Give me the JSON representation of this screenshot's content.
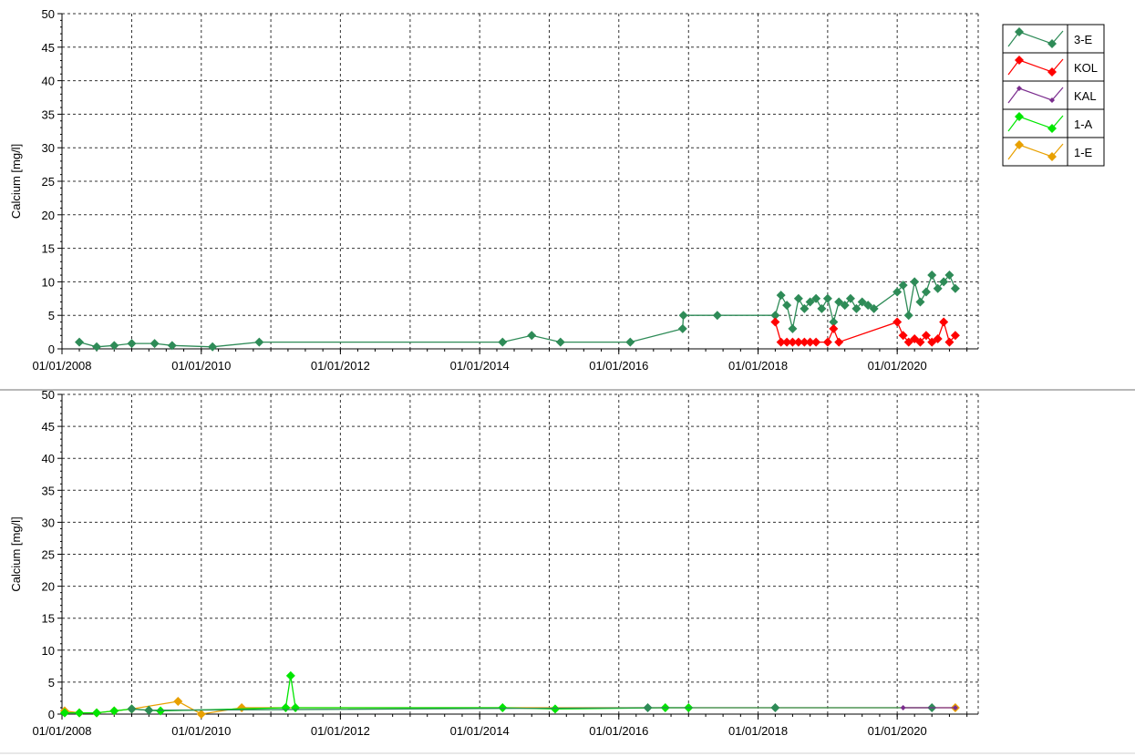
{
  "colors": {
    "3-E": "#2e8b57",
    "KOL": "#ff0000",
    "KAL": "#7b2d8e",
    "1-A": "#00e600",
    "1-E": "#e8a000"
  },
  "legend": {
    "position": "top-right",
    "items": [
      {
        "name": "3-E",
        "color": "#2e8b57",
        "marker": "diamond"
      },
      {
        "name": "KOL",
        "color": "#ff0000",
        "marker": "diamond"
      },
      {
        "name": "KAL",
        "color": "#7b2d8e",
        "marker": "small-diamond"
      },
      {
        "name": "1-A",
        "color": "#00e600",
        "marker": "diamond"
      },
      {
        "name": "1-E",
        "color": "#e8a000",
        "marker": "diamond"
      }
    ]
  },
  "chart_data": [
    {
      "type": "line",
      "ylabel": "Calcium [mg/l]",
      "xlabel": "",
      "ylim": [
        0,
        50
      ],
      "xlim": [
        "2008-01-01",
        "2021-03-01"
      ],
      "grid": true,
      "yticks": [
        "0",
        "5",
        "10",
        "15",
        "20",
        "25",
        "30",
        "35",
        "40",
        "45",
        "50"
      ],
      "xticks": [
        "01/01/2008",
        "01/01/2010",
        "01/01/2012",
        "01/01/2014",
        "01/01/2016",
        "01/01/2018",
        "01/01/2020"
      ],
      "series": [
        {
          "name": "3-E",
          "points": [
            [
              "2008-04-01",
              1.0
            ],
            [
              "2008-07-01",
              0.3
            ],
            [
              "2008-10-01",
              0.5
            ],
            [
              "2009-01-01",
              0.8
            ],
            [
              "2009-05-01",
              0.8
            ],
            [
              "2009-08-01",
              0.5
            ],
            [
              "2010-03-01",
              0.3
            ],
            [
              "2010-11-01",
              1.0
            ],
            [
              "2014-05-01",
              1.0
            ],
            [
              "2014-10-01",
              2.0
            ],
            [
              "2015-03-01",
              1.0
            ],
            [
              "2016-03-01",
              1.0
            ],
            [
              "2016-12-01",
              3.0
            ],
            [
              "2016-12-05",
              5.0
            ],
            [
              "2017-06-01",
              5.0
            ],
            [
              "2018-04-01",
              5.0
            ],
            [
              "2018-05-01",
              8.0
            ],
            [
              "2018-06-01",
              6.5
            ],
            [
              "2018-07-01",
              3.0
            ],
            [
              "2018-08-01",
              7.5
            ],
            [
              "2018-09-01",
              6.0
            ],
            [
              "2018-10-01",
              7.0
            ],
            [
              "2018-11-01",
              7.5
            ],
            [
              "2018-12-01",
              6.0
            ],
            [
              "2019-01-01",
              7.5
            ],
            [
              "2019-02-01",
              4.0
            ],
            [
              "2019-03-01",
              7.0
            ],
            [
              "2019-04-01",
              6.5
            ],
            [
              "2019-05-01",
              7.5
            ],
            [
              "2019-06-01",
              6.0
            ],
            [
              "2019-07-01",
              7.0
            ],
            [
              "2019-08-01",
              6.5
            ],
            [
              "2019-09-01",
              6.0
            ],
            [
              "2020-01-01",
              8.5
            ],
            [
              "2020-02-01",
              9.5
            ],
            [
              "2020-03-01",
              5.0
            ],
            [
              "2020-04-01",
              10.0
            ],
            [
              "2020-05-01",
              7.0
            ],
            [
              "2020-06-01",
              8.5
            ],
            [
              "2020-07-01",
              11.0
            ],
            [
              "2020-08-01",
              9.0
            ],
            [
              "2020-09-01",
              10.0
            ],
            [
              "2020-10-01",
              11.0
            ],
            [
              "2020-11-01",
              9.0
            ]
          ]
        },
        {
          "name": "KOL",
          "points": [
            [
              "2018-04-01",
              4.0
            ],
            [
              "2018-05-01",
              1.0
            ],
            [
              "2018-06-01",
              1.0
            ],
            [
              "2018-07-01",
              1.0
            ],
            [
              "2018-08-01",
              1.0
            ],
            [
              "2018-09-01",
              1.0
            ],
            [
              "2018-10-01",
              1.0
            ],
            [
              "2018-11-01",
              1.0
            ],
            [
              "2019-01-01",
              1.0
            ],
            [
              "2019-02-01",
              3.0
            ],
            [
              "2019-03-01",
              1.0
            ],
            [
              "2020-01-01",
              4.0
            ],
            [
              "2020-02-01",
              2.0
            ],
            [
              "2020-03-01",
              1.0
            ],
            [
              "2020-04-01",
              1.5
            ],
            [
              "2020-05-01",
              1.0
            ],
            [
              "2020-06-01",
              2.0
            ],
            [
              "2020-07-01",
              1.0
            ],
            [
              "2020-08-01",
              1.5
            ],
            [
              "2020-09-01",
              4.0
            ],
            [
              "2020-10-01",
              1.0
            ],
            [
              "2020-11-01",
              2.0
            ]
          ]
        }
      ]
    },
    {
      "type": "line",
      "ylabel": "Calcium [mg/l]",
      "xlabel": "",
      "ylim": [
        0,
        50
      ],
      "xlim": [
        "2008-01-01",
        "2021-03-01"
      ],
      "grid": true,
      "yticks": [
        "0",
        "5",
        "10",
        "15",
        "20",
        "25",
        "30",
        "35",
        "40",
        "45",
        "50"
      ],
      "xticks": [
        "01/01/2008",
        "01/01/2010",
        "01/01/2012",
        "01/01/2014",
        "01/01/2016",
        "01/01/2018",
        "01/01/2020"
      ],
      "series": [
        {
          "name": "1-E",
          "points": [
            [
              "2008-01-15",
              0.5
            ],
            [
              "2008-04-01",
              0.2
            ],
            [
              "2008-07-01",
              0.2
            ],
            [
              "2008-10-01",
              0.5
            ],
            [
              "2009-01-01",
              0.8
            ],
            [
              "2009-09-01",
              2.0
            ],
            [
              "2010-01-01",
              0.0
            ],
            [
              "2010-08-01",
              1.0
            ],
            [
              "2020-11-01",
              1.0
            ]
          ]
        },
        {
          "name": "1-A",
          "points": [
            [
              "2008-01-15",
              0.2
            ],
            [
              "2008-04-01",
              0.2
            ],
            [
              "2008-07-01",
              0.2
            ],
            [
              "2008-10-01",
              0.5
            ],
            [
              "2009-01-01",
              0.8
            ],
            [
              "2009-04-01",
              0.6
            ],
            [
              "2009-06-01",
              0.5
            ],
            [
              "2011-03-20",
              1.0
            ],
            [
              "2011-04-15",
              6.0
            ],
            [
              "2011-05-10",
              1.0
            ],
            [
              "2014-05-01",
              1.0
            ],
            [
              "2015-02-01",
              0.8
            ],
            [
              "2016-09-01",
              1.0
            ],
            [
              "2017-01-01",
              1.0
            ]
          ]
        },
        {
          "name": "3-E",
          "points": [
            [
              "2009-01-01",
              0.8
            ],
            [
              "2009-04-01",
              0.6
            ],
            [
              "2016-06-01",
              1.0
            ],
            [
              "2018-04-01",
              1.0
            ],
            [
              "2020-07-01",
              1.0
            ]
          ]
        },
        {
          "name": "KAL",
          "points": [
            [
              "2020-02-01",
              1.0
            ],
            [
              "2020-11-01",
              1.0
            ]
          ]
        }
      ]
    }
  ]
}
